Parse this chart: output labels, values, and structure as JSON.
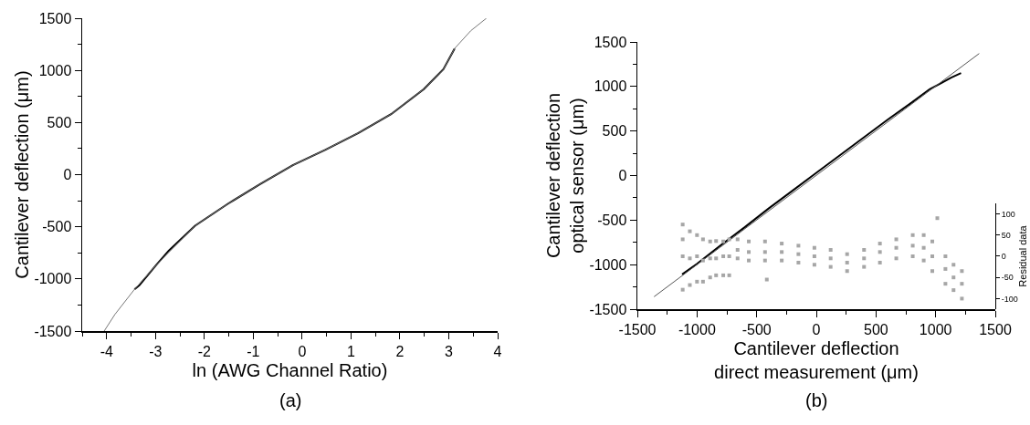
{
  "chart_data": [
    {
      "type": "line",
      "xlabel": "ln (AWG Channel Ratio)",
      "ylabel": "Cantilever deflection (μm)",
      "annotations": [
        "(a)"
      ],
      "xlim": [
        -4.5,
        4
      ],
      "xticks": [
        {
          "value": -4.5,
          "label": null
        },
        -4,
        {
          "value": -3.5,
          "label": null
        },
        -3,
        {
          "value": -2.5,
          "label": null
        },
        -2,
        {
          "value": -1.5,
          "label": null
        },
        -1,
        {
          "value": -0.5,
          "label": null
        },
        0,
        {
          "value": 0.5,
          "label": null
        },
        1,
        {
          "value": 1.5,
          "label": null
        },
        2,
        {
          "value": 2.5,
          "label": null
        },
        3,
        {
          "value": 3.5,
          "label": null
        },
        4
      ],
      "ylim": [
        -1500,
        1500
      ],
      "yticks": [
        -1500,
        {
          "value": -1250,
          "label": null
        },
        -1000,
        {
          "value": -750,
          "label": null
        },
        -500,
        {
          "value": -250,
          "label": null
        },
        0,
        {
          "value": 250,
          "label": null
        },
        500,
        {
          "value": 750,
          "label": null
        },
        1000,
        {
          "value": 1250,
          "label": null
        },
        1500
      ],
      "grid": false,
      "marker": "none",
      "line_style": "solid",
      "series": [
        {
          "color": "#000000",
          "x": [
            -3.43,
            -3.33,
            -2.99,
            -2.73,
            -2.19,
            -1.52,
            -0.86,
            -0.19,
            0.48,
            1.15,
            1.82,
            2.49,
            2.89,
            3.12
          ],
          "values": [
            -1100,
            -1060,
            -870,
            -730,
            -490,
            -280,
            -90,
            90,
            240,
            400,
            580,
            820,
            1010,
            1210
          ]
        },
        {
          "color": "#777777",
          "x": [
            -4.05,
            -3.83,
            -3.43,
            -2.99,
            -2.19,
            -1.52,
            -0.86,
            -0.19,
            0.48,
            1.15,
            1.82,
            2.49,
            2.89,
            3.12,
            3.45,
            3.77
          ],
          "values": [
            -1500,
            -1340,
            -1100,
            -870,
            -490,
            -280,
            -90,
            90,
            240,
            400,
            580,
            820,
            1010,
            1210,
            1380,
            1500
          ]
        }
      ]
    },
    {
      "type": "line",
      "xlabel": "Cantilever deflection\ndirect measurement (μm)",
      "ylabel": "Cantilever deflection\noptical sensor (μm)",
      "y3label": "Residual data",
      "annotations": [
        "(b)"
      ],
      "xlim": [
        -1500,
        1500
      ],
      "xticks": [
        -1500,
        {
          "value": -1250,
          "label": null
        },
        -1000,
        {
          "value": -750,
          "label": null
        },
        -500,
        {
          "value": -250,
          "label": null
        },
        0,
        {
          "value": 250,
          "label": null
        },
        500,
        {
          "value": 750,
          "label": null
        },
        1000,
        {
          "value": 1250,
          "label": null
        },
        1500
      ],
      "ylim": [
        -1500,
        1500
      ],
      "yticks": [
        -1500,
        {
          "value": -1250,
          "label": null
        },
        -1000,
        {
          "value": -750,
          "label": null
        },
        -500,
        {
          "value": -250,
          "label": null
        },
        0,
        {
          "value": 250,
          "label": null
        },
        500,
        {
          "value": 750,
          "label": null
        },
        1000,
        {
          "value": 1250,
          "label": null
        },
        1500
      ],
      "y3lim": [
        -125,
        125
      ],
      "y3ticks": [
        -100,
        -50,
        0,
        50,
        100
      ],
      "grid": false,
      "line_style": "solid",
      "series": [
        {
          "type": "scatter",
          "axis": "y3",
          "marker": "square",
          "color": "#a6a6a6",
          "x": [
            -1120,
            -1120,
            -1120,
            -1120,
            -1060,
            -1060,
            -1060,
            -1000,
            -1000,
            -1000,
            -950,
            -950,
            -950,
            -890,
            -890,
            -890,
            -840,
            -840,
            -840,
            -780,
            -780,
            -780,
            -730,
            -730,
            -730,
            -660,
            -660,
            -660,
            -566,
            -566,
            -566,
            -415,
            -430,
            -430,
            -430,
            -290,
            -290,
            -290,
            -150,
            -150,
            -150,
            -16,
            -16,
            -16,
            120,
            120,
            120,
            258,
            258,
            258,
            400,
            400,
            400,
            533,
            533,
            533,
            670,
            670,
            670,
            808,
            808,
            808,
            900,
            900,
            900,
            972,
            972,
            972,
            1014,
            1082,
            1082,
            1082,
            1150,
            1150,
            1150,
            1220,
            1220,
            1220
          ],
          "values": [
            75,
            0,
            -79,
            40,
            59,
            -5,
            -68,
            50,
            0,
            -60,
            40,
            -10,
            -60,
            35,
            -5,
            -50,
            36,
            -5,
            -45,
            35,
            0,
            -45,
            40,
            0,
            -45,
            40,
            15,
            -5,
            35,
            10,
            -10,
            -55,
            35,
            10,
            -10,
            30,
            10,
            -10,
            25,
            5,
            -15,
            20,
            0,
            -20,
            15,
            -5,
            -25,
            5,
            -15,
            -35,
            15,
            -5,
            -25,
            30,
            10,
            -15,
            40,
            20,
            -5,
            50,
            25,
            0,
            50,
            20,
            -10,
            35,
            0,
            -35,
            90,
            0,
            -30,
            -65,
            -20,
            -50,
            -80,
            -35,
            -65,
            -100
          ]
        },
        {
          "color": "#000000",
          "x": [
            -1125,
            -1000,
            -800,
            -600,
            -400,
            -200,
            0,
            200,
            400,
            600,
            800,
            950,
            1050,
            1130,
            1213
          ],
          "values": [
            -1110,
            -990,
            -780,
            -580,
            -370,
            -170,
            30,
            230,
            430,
            630,
            820,
            970,
            1040,
            1100,
            1150
          ]
        },
        {
          "color": "#555555",
          "x": [
            -1360,
            1365
          ],
          "values": [
            -1360,
            1370
          ]
        }
      ]
    }
  ]
}
